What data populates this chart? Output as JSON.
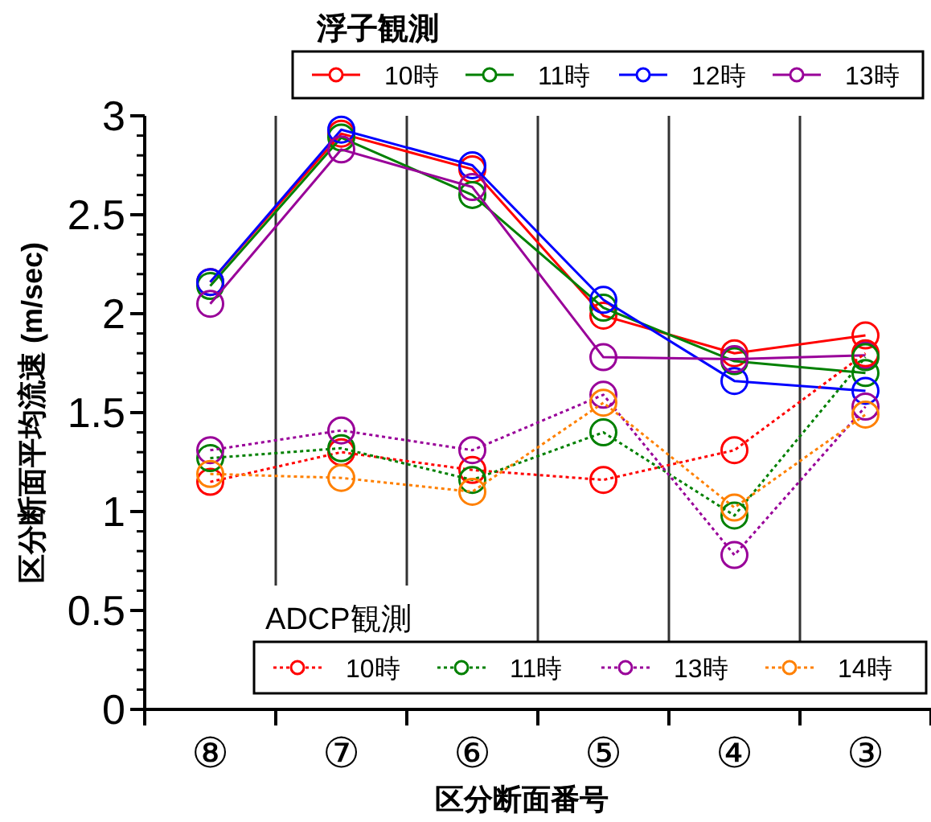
{
  "chart_data": {
    "type": "line",
    "xlabel": "区分断面番号",
    "ylabel": "区分断面平均流速 (m/sec)",
    "categories": [
      "⑧",
      "⑦",
      "⑥",
      "⑤",
      "④",
      "③"
    ],
    "ylim": [
      0,
      3
    ],
    "yticks": [
      0,
      0.5,
      1,
      1.5,
      2,
      2.5,
      3
    ],
    "grid": "x",
    "marker": "circle",
    "legend": "top",
    "annotations": [
      "浮子観測",
      "ADCP観測"
    ],
    "series": [
      {
        "name": "10時",
        "color": "#ff0000",
        "line_style": "solid",
        "values": [
          2.16,
          2.91,
          2.73,
          1.99,
          1.8,
          1.89
        ]
      },
      {
        "name": "11時",
        "color": "#008000",
        "line_style": "solid",
        "values": [
          2.14,
          2.89,
          2.6,
          2.03,
          1.76,
          1.7
        ]
      },
      {
        "name": "12時",
        "color": "#0000ff",
        "line_style": "solid",
        "values": [
          2.16,
          2.93,
          2.75,
          2.07,
          1.66,
          1.61
        ]
      },
      {
        "name": "13時",
        "color": "#990099",
        "line_style": "solid",
        "values": [
          2.05,
          2.83,
          2.64,
          1.78,
          1.77,
          1.79
        ]
      },
      {
        "name": "10時",
        "color": "#ff0000",
        "line_style": "dotted",
        "values": [
          1.15,
          1.3,
          1.21,
          1.16,
          1.31,
          1.8
        ]
      },
      {
        "name": "11時",
        "color": "#008000",
        "line_style": "dotted",
        "values": [
          1.27,
          1.32,
          1.16,
          1.4,
          0.98,
          1.78
        ]
      },
      {
        "name": "13時",
        "color": "#990099",
        "line_style": "dotted",
        "values": [
          1.31,
          1.41,
          1.31,
          1.59,
          0.78,
          1.53
        ]
      },
      {
        "name": "14時",
        "color": "#ff8000",
        "line_style": "dotted",
        "values": [
          1.19,
          1.17,
          1.1,
          1.55,
          1.02,
          1.49
        ]
      }
    ]
  }
}
